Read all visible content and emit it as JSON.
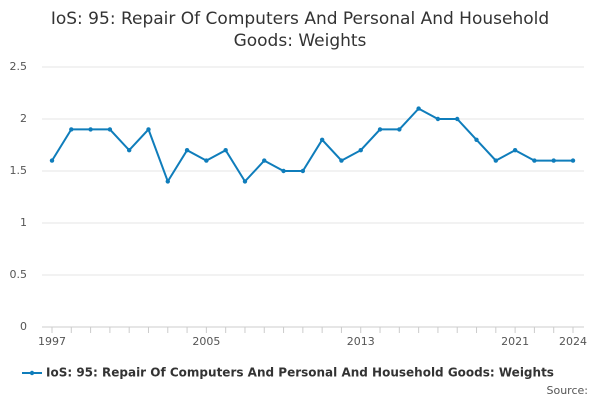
{
  "chart_data": {
    "type": "line",
    "title": "IoS: 95: Repair Of Computers And Personal And Household Goods: Weights",
    "x": [
      1997,
      1998,
      1999,
      2000,
      2001,
      2002,
      2003,
      2004,
      2005,
      2006,
      2007,
      2008,
      2009,
      2010,
      2011,
      2012,
      2013,
      2014,
      2015,
      2016,
      2017,
      2018,
      2019,
      2020,
      2021,
      2022,
      2023,
      2024
    ],
    "series": [
      {
        "name": "IoS: 95: Repair Of Computers And Personal And Household Goods: Weights",
        "color": "#0f7dbb",
        "values": [
          1.6,
          1.9,
          1.9,
          1.9,
          1.7,
          1.9,
          1.4,
          1.7,
          1.6,
          1.7,
          1.4,
          1.6,
          1.5,
          1.5,
          1.8,
          1.6,
          1.7,
          1.9,
          1.9,
          2.1,
          2.0,
          2.0,
          1.8,
          1.6,
          1.7,
          1.6,
          1.6,
          1.6
        ]
      }
    ],
    "xlim": [
      1997,
      2024
    ],
    "xticks": [
      1997,
      2005,
      2013,
      2021,
      2024
    ],
    "ylim": [
      0,
      2.5
    ],
    "yticks": [
      0,
      0.5,
      1,
      1.5,
      2,
      2.5
    ],
    "grid": true,
    "legend": "bottom",
    "source": "Source:"
  }
}
